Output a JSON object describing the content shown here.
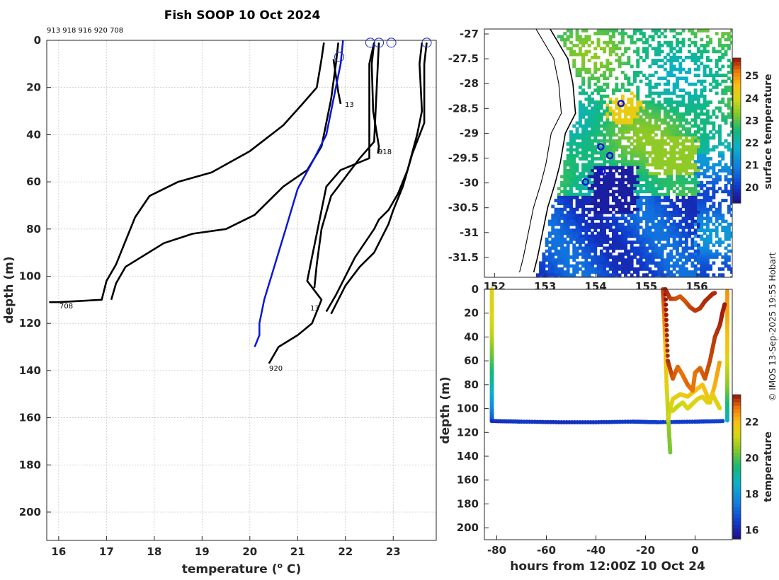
{
  "title": "Fish SOOP 10 Oct 2024",
  "copyright": "© IMOS 13-Sep-2025 19:55 Hobart",
  "colors": {
    "climatology": "#0a16d8",
    "profile": "#000000",
    "marker": "#1a2ccc"
  },
  "chart_data": [
    {
      "type": "line",
      "name": "profiles",
      "title": "Fish SOOP 10 Oct 2024",
      "xlabel": "temperature (° C)",
      "xlabel_main": "temperature (",
      "xlabel_sup": "o",
      "xlabel_end": " C)",
      "ylabel": "depth (m)",
      "xlim": [
        15.75,
        23.9
      ],
      "ylim": [
        0,
        212
      ],
      "xticks": [
        "16",
        "17",
        "18",
        "19",
        "20",
        "21",
        "22",
        "23"
      ],
      "yticks": [
        "0",
        "20",
        "40",
        "60",
        "80",
        "100",
        "120",
        "140",
        "160",
        "180",
        "200"
      ],
      "id_list": "913 918 916 920 708",
      "labels": [
        "13",
        "918",
        "920",
        "708",
        "13"
      ],
      "series": [
        {
          "name": "708",
          "x": [
            21.55,
            21.5,
            21.4,
            21.1,
            20.7,
            20.0,
            19.2,
            18.5,
            17.9,
            17.6,
            17.4,
            17.2,
            17.0,
            16.9,
            16.0,
            15.8
          ],
          "y": [
            1,
            8,
            20,
            27,
            36,
            47,
            56,
            60,
            66,
            75,
            85,
            95,
            102,
            110,
            111,
            111
          ]
        },
        {
          "name": "916",
          "x": [
            21.85,
            21.8,
            21.7,
            21.5,
            21.2,
            20.7,
            20.1,
            19.5,
            18.8,
            18.2,
            17.8,
            17.4,
            17.2,
            17.1
          ],
          "y": [
            1,
            10,
            25,
            45,
            55,
            62,
            74,
            80,
            82,
            86,
            91,
            96,
            103,
            110
          ]
        },
        {
          "name": "913",
          "x": [
            21.75,
            21.8,
            21.85,
            21.9
          ],
          "y": [
            8,
            15,
            22,
            27
          ]
        },
        {
          "name": "918",
          "x": [
            22.6,
            22.55,
            22.58,
            22.7,
            22.68
          ],
          "y": [
            1,
            10,
            30,
            45,
            48
          ]
        },
        {
          "name": "920",
          "x": [
            22.6,
            22.5,
            22.5,
            21.9,
            21.6,
            21.5,
            21.4,
            21.3,
            21.2,
            21.5,
            21.4,
            21.3,
            21.0,
            20.6,
            20.4
          ],
          "y": [
            1,
            10,
            50,
            55,
            62,
            72,
            82,
            92,
            102,
            110,
            115,
            120,
            125,
            130,
            137
          ]
        },
        {
          "name": "p6",
          "x": [
            23.6,
            23.55,
            23.6,
            23.5,
            23.3,
            23.1,
            22.9,
            22.7,
            22.6,
            22.4,
            22.2,
            22.0,
            21.8,
            21.6
          ],
          "y": [
            1,
            10,
            30,
            40,
            55,
            65,
            72,
            76,
            80,
            86,
            92,
            100,
            108,
            115
          ]
        },
        {
          "name": "p7",
          "x": [
            23.7,
            23.65,
            23.65,
            23.4,
            23.2,
            23.0,
            22.9,
            22.75,
            22.6,
            22.3,
            22.0,
            21.7
          ],
          "y": [
            1,
            10,
            35,
            48,
            62,
            72,
            78,
            84,
            90,
            96,
            104,
            116
          ]
        },
        {
          "name": "p8",
          "x": [
            22.7,
            22.6,
            22.3,
            22.0,
            21.7,
            21.5,
            21.4,
            21.35
          ],
          "y": [
            1,
            43,
            50,
            58,
            66,
            80,
            95,
            105
          ]
        }
      ],
      "climatology": {
        "name": "climatology",
        "x": [
          21.95,
          21.9,
          21.75,
          21.6,
          21.35,
          21.0,
          20.75,
          20.6,
          20.45,
          20.3,
          20.2,
          20.2,
          20.1
        ],
        "y": [
          0,
          10,
          25,
          40,
          50,
          63,
          80,
          90,
          100,
          110,
          120,
          125,
          130
        ]
      },
      "markers": [
        [
          21.87,
          7
        ],
        [
          22.52,
          1
        ],
        [
          22.7,
          1
        ],
        [
          22.96,
          1
        ],
        [
          23.7,
          1
        ]
      ]
    },
    {
      "type": "heatmap",
      "name": "surface-map",
      "colorbar_label": "surface temperature",
      "colorbar_ticks": [
        "20",
        "21",
        "22",
        "23",
        "24",
        "25"
      ],
      "clim": [
        19.3,
        25.8
      ],
      "xlim": [
        151.8,
        156.7
      ],
      "ylim": [
        -31.9,
        -26.9
      ],
      "xticks": [
        "152",
        "153",
        "154",
        "155",
        "156"
      ],
      "yticks": [
        "-27",
        "-27.5",
        "-28",
        "-28.5",
        "-29",
        "-29.5",
        "-30",
        "-30.5",
        "-31",
        "-31.5"
      ],
      "stations": [
        [
          154.5,
          -28.4
        ],
        [
          154.1,
          -29.27
        ],
        [
          154.28,
          -29.45
        ],
        [
          154.13,
          -29.77
        ],
        [
          153.8,
          -29.98
        ]
      ]
    },
    {
      "type": "scatter",
      "name": "depth-time",
      "xlabel": "hours from 12:00Z 10 Oct 24",
      "ylabel": "depth (m)",
      "colorbar_label": "temperature",
      "colorbar_ticks": [
        "16",
        "18",
        "20",
        "22"
      ],
      "clim": [
        15.5,
        23.5
      ],
      "xlim": [
        -85,
        15
      ],
      "ylim": [
        0,
        210
      ],
      "xticks": [
        "-80",
        "-60",
        "-40",
        "-20",
        "0"
      ],
      "yticks": [
        "0",
        "20",
        "40",
        "60",
        "80",
        "100",
        "120",
        "140",
        "160",
        "180",
        "200"
      ],
      "tracks": [
        {
          "name": "track-left-descent",
          "t": [
            -82,
            -82,
            -82,
            -82,
            -82,
            -82,
            -82
          ],
          "d": [
            0,
            20,
            40,
            60,
            80,
            100,
            110
          ],
          "temp": [
            21.5,
            21.4,
            21.0,
            20.0,
            19.0,
            17.8,
            16.9
          ]
        },
        {
          "name": "track-bottom",
          "t": [
            -82,
            -70,
            -55,
            -40,
            -25,
            -15,
            0,
            12
          ],
          "d": [
            110.5,
            111,
            111.5,
            111.5,
            111,
            111.5,
            111,
            110.5
          ],
          "temp": [
            16.2,
            16.4,
            16.2,
            16.3,
            16.4,
            16.5,
            16.4,
            16.6
          ]
        },
        {
          "name": "track-right-ascent",
          "t": [
            13,
            13,
            13,
            13,
            13,
            13,
            13
          ],
          "d": [
            110,
            95,
            80,
            60,
            40,
            20,
            0
          ],
          "temp": [
            18.5,
            19.5,
            20.5,
            21.3,
            22.0,
            22.3,
            22.5
          ]
        },
        {
          "name": "track-a",
          "t": [
            -13,
            -12.5,
            -12,
            -11.5,
            -11,
            -10.5,
            -10
          ],
          "d": [
            0,
            20,
            50,
            80,
            100,
            120,
            138
          ],
          "temp": [
            23.2,
            22.8,
            22.0,
            21.5,
            21.0,
            20.5,
            20.3
          ]
        },
        {
          "name": "track-b",
          "t": [
            -11,
            -10,
            -9,
            -6,
            -3,
            0,
            3,
            6,
            8,
            10
          ],
          "d": [
            110,
            100,
            92,
            88,
            90,
            85,
            80,
            95,
            80,
            60
          ],
          "temp": [
            21.0,
            21.4,
            21.6,
            21.6,
            21.7,
            21.8,
            21.9,
            22.0,
            22.2,
            22.4
          ]
        },
        {
          "name": "track-c",
          "t": [
            -12,
            -11,
            -9,
            -7,
            -5,
            -3,
            -1,
            0,
            2,
            4,
            6,
            8,
            10,
            11,
            12
          ],
          "d": [
            0,
            60,
            75,
            65,
            72,
            80,
            85,
            70,
            66,
            75,
            60,
            40,
            30,
            20,
            12
          ],
          "temp": [
            23.5,
            23.3,
            23.0,
            22.9,
            22.8,
            22.9,
            22.8,
            22.8,
            22.9,
            23.0,
            23.1,
            23.2,
            23.3,
            23.4,
            23.4
          ]
        },
        {
          "name": "track-d",
          "t": [
            -12,
            -10,
            -8,
            -6,
            -4,
            -2,
            0,
            2,
            4,
            6,
            7,
            8
          ],
          "d": [
            0,
            8,
            8,
            6,
            10,
            15,
            18,
            16,
            10,
            6,
            4,
            3
          ],
          "temp": [
            23.4,
            23.2,
            23.1,
            23.0,
            23.0,
            23.1,
            23.2,
            23.2,
            23.3,
            23.3,
            23.3,
            23.3
          ]
        },
        {
          "name": "track-e",
          "t": [
            -11,
            -9,
            -7,
            -5,
            -3,
            -1,
            1,
            3,
            5,
            7,
            9,
            10
          ],
          "d": [
            100,
            102,
            98,
            95,
            100,
            96,
            92,
            90,
            95,
            88,
            96,
            100
          ],
          "temp": [
            21.0,
            21.2,
            21.1,
            21.2,
            21.3,
            21.4,
            21.4,
            21.5,
            21.4,
            21.6,
            21.5,
            21.4
          ]
        }
      ]
    }
  ]
}
